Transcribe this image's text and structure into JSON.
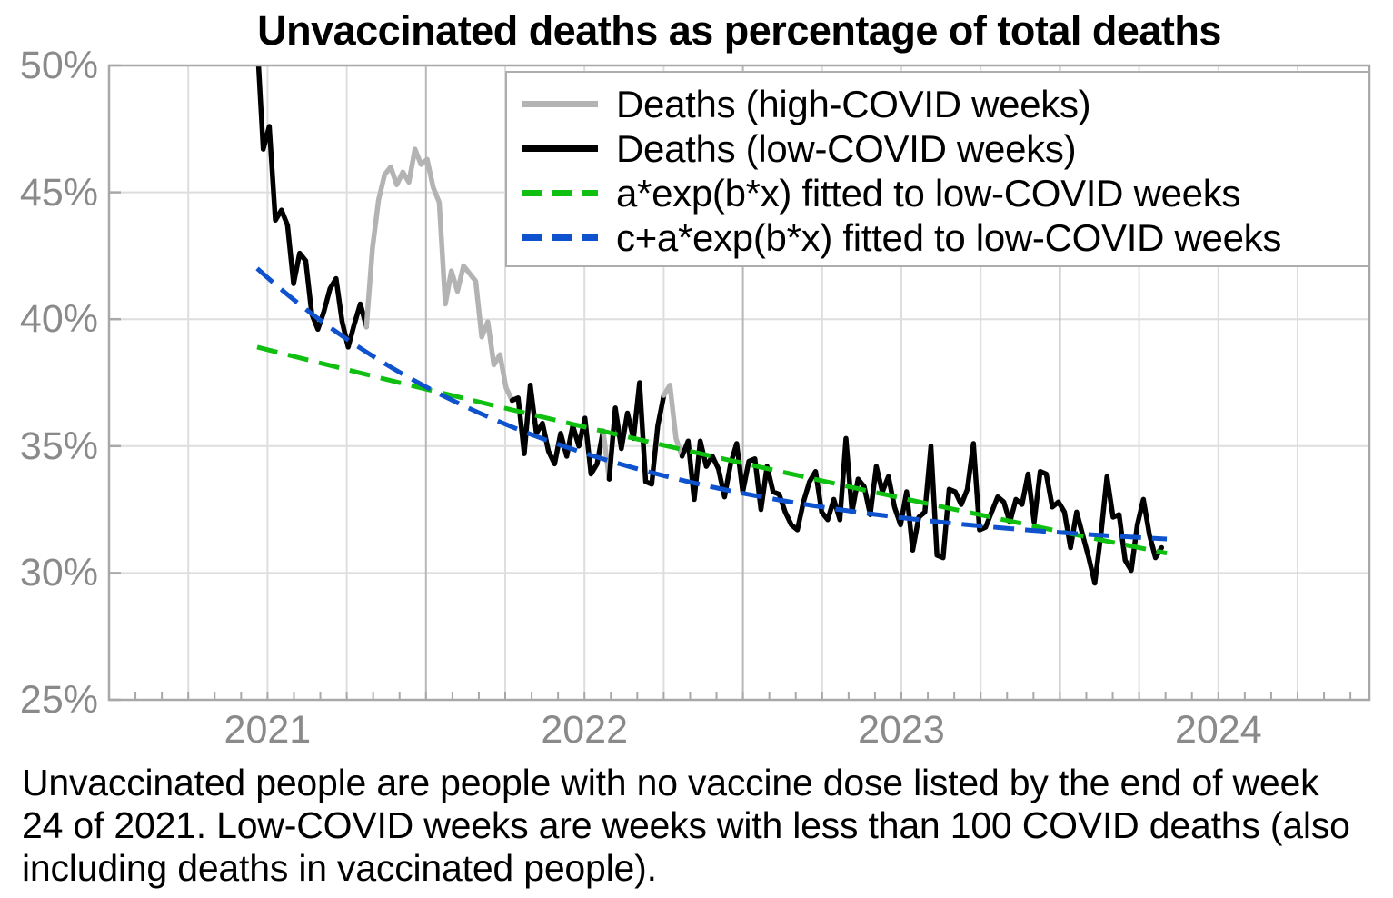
{
  "title": "Unvaccinated deaths as percentage of total deaths",
  "caption": {
    "line1": "Unvaccinated people are people with no vaccine dose listed by the end of week",
    "line2": "24 of 2021. Low-COVID weeks are weeks with less than 100 COVID deaths (also",
    "line3": "including deaths in vaccinated people)."
  },
  "legend": {
    "position": "top-right",
    "entries": [
      {
        "key": "deaths-high-covid",
        "label": "Deaths (high-COVID weeks)",
        "color": "#b3b3b3",
        "dash": false
      },
      {
        "key": "deaths-low-covid",
        "label": "Deaths (low-COVID weeks)",
        "color": "#000000",
        "dash": false
      },
      {
        "key": "fit-exp",
        "label": "a*exp(b*x) fitted to low-COVID weeks",
        "color": "#10c010",
        "dash": true
      },
      {
        "key": "fit-exp-offset",
        "label": "c+a*exp(b*x) fitted to low-COVID weeks",
        "color": "#0e52ce",
        "dash": true
      }
    ]
  },
  "colors": {
    "black_line": "#000000",
    "gray_line": "#b3b3b3",
    "green_fit": "#10c010",
    "blue_fit": "#0e52ce",
    "grid_minor": "#dedede",
    "grid_year": "#b7b7b7",
    "frame": "#a8a8a8",
    "tick_label": "#8a8a8a"
  },
  "chart_data": {
    "type": "line",
    "title": "Unvaccinated deaths as percentage of total deaths",
    "xlabel": "",
    "ylabel": "",
    "ylim": [
      25,
      50
    ],
    "xlim_dates": [
      "2021-01-01",
      "2024-12-22"
    ],
    "y_ticks": [
      {
        "label": "50%",
        "value": 50
      },
      {
        "label": "45%",
        "value": 45
      },
      {
        "label": "40%",
        "value": 40
      },
      {
        "label": "35%",
        "value": 35
      },
      {
        "label": "30%",
        "value": 30
      },
      {
        "label": "25%",
        "value": 25
      }
    ],
    "x_ticks": [
      {
        "label": "2021",
        "year": 2021
      },
      {
        "label": "2022",
        "year": 2022
      },
      {
        "label": "2023",
        "year": 2023
      },
      {
        "label": "2024",
        "year": 2024
      }
    ],
    "grid": {
      "vertical": "quarterly (year boundaries darker)",
      "horizontal": "every 5%",
      "minor_x_ticks": "monthly"
    },
    "series_start_date": "2021-06-20",
    "series_interval": "weekly",
    "weekly_unvaccinated_pct_of_deaths": [
      51.0,
      46.7,
      47.6,
      43.9,
      44.3,
      43.7,
      41.4,
      42.6,
      42.3,
      40.2,
      39.6,
      40.3,
      41.2,
      41.6,
      39.9,
      38.9,
      39.8,
      40.6,
      39.7,
      42.8,
      44.7,
      45.7,
      46.0,
      45.3,
      45.8,
      45.4,
      46.7,
      46.1,
      46.3,
      45.2,
      44.6,
      40.6,
      41.9,
      41.1,
      42.1,
      41.8,
      41.5,
      39.3,
      39.9,
      38.2,
      38.6,
      37.3,
      36.8,
      36.9,
      34.7,
      37.4,
      35.5,
      35.9,
      34.8,
      34.3,
      35.5,
      34.6,
      35.8,
      35.0,
      36.1,
      33.9,
      34.3,
      35.6,
      33.7,
      36.5,
      34.9,
      36.3,
      35.3,
      37.5,
      33.6,
      33.5,
      35.8,
      37.0,
      37.4,
      35.3,
      34.6,
      35.2,
      32.9,
      35.2,
      34.2,
      34.6,
      34.1,
      33.0,
      34.3,
      35.1,
      33.2,
      34.4,
      34.5,
      32.5,
      34.2,
      33.2,
      33.1,
      32.4,
      31.9,
      31.7,
      32.8,
      33.6,
      34.0,
      32.4,
      32.1,
      32.9,
      32.1,
      35.3,
      32.4,
      33.7,
      33.4,
      32.3,
      34.2,
      33.2,
      33.8,
      32.6,
      31.9,
      33.2,
      30.9,
      32.2,
      32.4,
      35.0,
      30.7,
      30.6,
      33.3,
      33.2,
      32.7,
      33.3,
      35.1,
      31.7,
      31.8,
      32.4,
      33.0,
      32.8,
      32.0,
      32.9,
      32.7,
      33.9,
      32.0,
      34.0,
      33.9,
      32.6,
      32.8,
      32.4,
      31.0,
      32.4,
      31.5,
      30.6,
      29.6,
      31.5,
      33.8,
      32.2,
      32.3,
      30.5,
      30.1,
      31.9,
      32.9,
      31.5,
      30.6,
      31.0
    ],
    "high_covid_index_ranges": [
      [
        18,
        42
      ],
      [
        57,
        58
      ],
      [
        67,
        70
      ]
    ],
    "trend_fits": [
      {
        "name": "a*exp(b*x) fitted to low-COVID weeks",
        "form": "a*exp(b*t)",
        "a": 38.9,
        "b_per_year": -0.0816,
        "c": 0,
        "color": "#10c010",
        "t_start_years": 0,
        "t_end_years": 2.87
      },
      {
        "name": "c+a*exp(b*x) fitted to low-COVID weeks",
        "form": "c+a*exp(b*t)",
        "a": 11.3,
        "b_per_year": -1.0,
        "c": 30.7,
        "color": "#0e52ce",
        "t_start_years": 0,
        "t_end_years": 2.87
      }
    ]
  }
}
